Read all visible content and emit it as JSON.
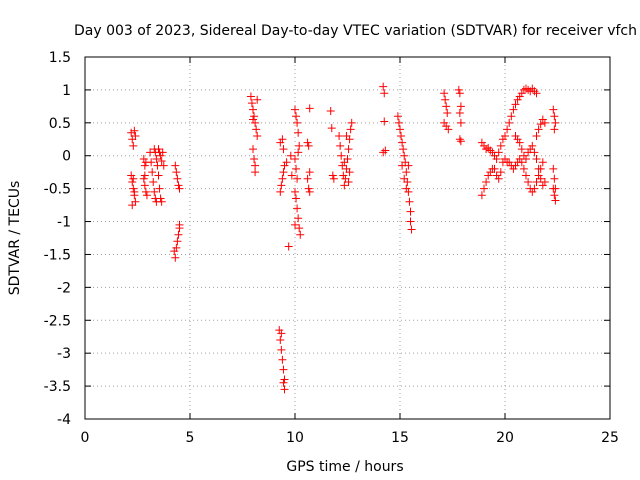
{
  "chart_data": {
    "type": "scatter",
    "title": "Day 003 of 2023, Sidereal Day-to-day VTEC variation (SDTVAR) for receiver vfch",
    "xlabel": "GPS time / hours",
    "ylabel": "SDTVAR / TECUs",
    "xlim": [
      0,
      25
    ],
    "ylim": [
      -4,
      1.5
    ],
    "xticks": [
      0,
      5,
      10,
      15,
      20,
      25
    ],
    "yticks": [
      -4,
      -3.5,
      -3,
      -2.5,
      -2,
      -1.5,
      -1,
      -0.5,
      0,
      0.5,
      1,
      1.5
    ],
    "grid": true,
    "marker": "+",
    "color": "#ff0000",
    "series": [
      {
        "name": "SDTVAR",
        "points": [
          [
            2.2,
            0.35
          ],
          [
            2.25,
            0.25
          ],
          [
            2.3,
            0.15
          ],
          [
            2.35,
            0.38
          ],
          [
            2.4,
            0.3
          ],
          [
            2.2,
            -0.3
          ],
          [
            2.25,
            -0.4
          ],
          [
            2.3,
            -0.5
          ],
          [
            2.35,
            -0.6
          ],
          [
            2.4,
            -0.7
          ],
          [
            2.25,
            -0.75
          ],
          [
            2.3,
            -0.35
          ],
          [
            2.35,
            -0.55
          ],
          [
            2.8,
            -0.05
          ],
          [
            2.85,
            -0.15
          ],
          [
            2.9,
            -0.1
          ],
          [
            2.8,
            -0.35
          ],
          [
            2.85,
            -0.45
          ],
          [
            2.9,
            -0.55
          ],
          [
            2.95,
            -0.6
          ],
          [
            2.85,
            -0.3
          ],
          [
            3.1,
            0.05
          ],
          [
            3.15,
            -0.1
          ],
          [
            3.2,
            -0.25
          ],
          [
            3.25,
            -0.4
          ],
          [
            3.3,
            -0.55
          ],
          [
            3.35,
            -0.65
          ],
          [
            3.4,
            -0.7
          ],
          [
            3.3,
            0.1
          ],
          [
            3.35,
            0.05
          ],
          [
            3.4,
            -0.05
          ],
          [
            3.45,
            -0.15
          ],
          [
            3.5,
            -0.3
          ],
          [
            3.55,
            -0.5
          ],
          [
            3.6,
            -0.65
          ],
          [
            3.65,
            -0.7
          ],
          [
            3.5,
            0.1
          ],
          [
            3.55,
            0.05
          ],
          [
            3.6,
            0.0
          ],
          [
            3.65,
            -0.08
          ],
          [
            3.7,
            0.05
          ],
          [
            3.75,
            -0.15
          ],
          [
            4.3,
            -0.15
          ],
          [
            4.35,
            -0.25
          ],
          [
            4.4,
            -0.35
          ],
          [
            4.45,
            -0.45
          ],
          [
            4.5,
            -0.5
          ],
          [
            4.25,
            -1.45
          ],
          [
            4.3,
            -1.55
          ],
          [
            4.35,
            -1.4
          ],
          [
            4.4,
            -1.3
          ],
          [
            4.45,
            -1.2
          ],
          [
            4.5,
            -1.1
          ],
          [
            4.5,
            -1.05
          ],
          [
            7.9,
            0.9
          ],
          [
            7.95,
            0.8
          ],
          [
            8.0,
            0.7
          ],
          [
            8.05,
            0.6
          ],
          [
            8.1,
            0.5
          ],
          [
            8.15,
            0.4
          ],
          [
            8.2,
            0.3
          ],
          [
            8.0,
            0.1
          ],
          [
            8.05,
            -0.05
          ],
          [
            8.1,
            -0.15
          ],
          [
            8.1,
            -0.25
          ],
          [
            8.2,
            0.85
          ],
          [
            8.0,
            0.55
          ],
          [
            9.25,
            -2.65
          ],
          [
            9.3,
            -2.8
          ],
          [
            9.35,
            -2.95
          ],
          [
            9.4,
            -3.1
          ],
          [
            9.45,
            -3.25
          ],
          [
            9.5,
            -3.4
          ],
          [
            9.5,
            -3.55
          ],
          [
            9.35,
            -2.7
          ],
          [
            9.45,
            -3.45
          ],
          [
            9.3,
            -0.55
          ],
          [
            9.35,
            -0.45
          ],
          [
            9.4,
            -0.35
          ],
          [
            9.45,
            -0.25
          ],
          [
            9.5,
            -0.15
          ],
          [
            9.3,
            0.2
          ],
          [
            9.4,
            0.25
          ],
          [
            9.45,
            0.1
          ],
          [
            9.6,
            -0.1
          ],
          [
            9.7,
            -1.38
          ],
          [
            9.8,
            0.0
          ],
          [
            9.85,
            -0.3
          ],
          [
            10.0,
            0.7
          ],
          [
            10.05,
            0.6
          ],
          [
            10.1,
            0.5
          ],
          [
            10.15,
            0.35
          ],
          [
            10.2,
            0.15
          ],
          [
            10.0,
            -0.05
          ],
          [
            10.05,
            -0.2
          ],
          [
            10.1,
            -0.35
          ],
          [
            10.0,
            -0.55
          ],
          [
            10.05,
            -0.65
          ],
          [
            10.1,
            -0.8
          ],
          [
            10.15,
            -0.95
          ],
          [
            10.2,
            -1.1
          ],
          [
            10.25,
            -1.2
          ],
          [
            10.0,
            -1.05
          ],
          [
            10.15,
            0.05
          ],
          [
            10.6,
            0.2
          ],
          [
            10.7,
            0.72
          ],
          [
            10.65,
            0.15
          ],
          [
            10.7,
            -0.25
          ],
          [
            10.6,
            -0.35
          ],
          [
            10.65,
            -0.5
          ],
          [
            10.7,
            -0.55
          ],
          [
            11.7,
            0.68
          ],
          [
            11.75,
            0.42
          ],
          [
            11.8,
            -0.3
          ],
          [
            11.85,
            -0.35
          ],
          [
            12.1,
            0.3
          ],
          [
            12.15,
            0.15
          ],
          [
            12.2,
            0.0
          ],
          [
            12.25,
            -0.15
          ],
          [
            12.3,
            -0.3
          ],
          [
            12.35,
            -0.45
          ],
          [
            12.4,
            -0.35
          ],
          [
            12.45,
            -0.2
          ],
          [
            12.5,
            -0.05
          ],
          [
            12.55,
            0.1
          ],
          [
            12.6,
            0.25
          ],
          [
            12.65,
            0.4
          ],
          [
            12.7,
            0.5
          ],
          [
            12.6,
            -0.25
          ],
          [
            12.55,
            -0.4
          ],
          [
            12.35,
            -0.1
          ],
          [
            12.45,
            0.3
          ],
          [
            14.2,
            1.05
          ],
          [
            14.25,
            0.95
          ],
          [
            14.25,
            0.52
          ],
          [
            14.2,
            0.05
          ],
          [
            14.3,
            0.08
          ],
          [
            14.9,
            0.6
          ],
          [
            14.95,
            0.5
          ],
          [
            15.0,
            0.4
          ],
          [
            15.05,
            0.3
          ],
          [
            15.1,
            0.2
          ],
          [
            15.15,
            0.1
          ],
          [
            15.2,
            0.0
          ],
          [
            15.25,
            -0.1
          ],
          [
            15.3,
            -0.25
          ],
          [
            15.35,
            -0.4
          ],
          [
            15.4,
            -0.55
          ],
          [
            15.45,
            -0.7
          ],
          [
            15.5,
            -0.85
          ],
          [
            15.5,
            -1.0
          ],
          [
            15.55,
            -1.12
          ],
          [
            15.3,
            -0.5
          ],
          [
            15.2,
            -0.35
          ],
          [
            15.1,
            -0.15
          ],
          [
            15.4,
            -0.15
          ],
          [
            17.1,
            0.95
          ],
          [
            17.15,
            0.85
          ],
          [
            17.2,
            0.75
          ],
          [
            17.25,
            0.65
          ],
          [
            17.1,
            0.5
          ],
          [
            17.2,
            0.45
          ],
          [
            17.3,
            0.4
          ],
          [
            17.8,
            1.0
          ],
          [
            17.85,
            0.95
          ],
          [
            17.9,
            0.75
          ],
          [
            17.85,
            0.65
          ],
          [
            17.9,
            0.5
          ],
          [
            17.85,
            0.25
          ],
          [
            17.9,
            0.22
          ],
          [
            18.9,
            -0.6
          ],
          [
            19.0,
            -0.5
          ],
          [
            19.1,
            -0.4
          ],
          [
            19.2,
            -0.3
          ],
          [
            19.3,
            -0.25
          ],
          [
            19.4,
            -0.2
          ],
          [
            19.5,
            -0.2
          ],
          [
            19.6,
            -0.3
          ],
          [
            19.7,
            -0.35
          ],
          [
            19.8,
            -0.25
          ],
          [
            19.9,
            -0.1
          ],
          [
            18.9,
            0.2
          ],
          [
            19.0,
            0.15
          ],
          [
            19.1,
            0.1
          ],
          [
            19.2,
            0.12
          ],
          [
            19.3,
            0.08
          ],
          [
            19.4,
            0.05
          ],
          [
            19.5,
            0.0
          ],
          [
            19.6,
            -0.05
          ],
          [
            19.7,
            0.05
          ],
          [
            19.8,
            0.15
          ],
          [
            19.9,
            0.25
          ],
          [
            20.0,
            0.3
          ],
          [
            20.1,
            0.4
          ],
          [
            20.2,
            0.5
          ],
          [
            20.3,
            0.6
          ],
          [
            20.4,
            0.7
          ],
          [
            20.5,
            0.78
          ],
          [
            20.6,
            0.85
          ],
          [
            20.7,
            0.9
          ],
          [
            20.8,
            0.95
          ],
          [
            20.9,
            1.0
          ],
          [
            21.0,
            1.02
          ],
          [
            21.1,
            1.0
          ],
          [
            21.2,
            0.98
          ],
          [
            21.3,
            1.02
          ],
          [
            21.4,
            0.98
          ],
          [
            21.5,
            0.95
          ],
          [
            20.0,
            -0.05
          ],
          [
            20.1,
            -0.1
          ],
          [
            20.2,
            -0.1
          ],
          [
            20.3,
            -0.15
          ],
          [
            20.4,
            -0.2
          ],
          [
            20.5,
            -0.15
          ],
          [
            20.6,
            -0.1
          ],
          [
            20.7,
            -0.05
          ],
          [
            20.8,
            -0.1
          ],
          [
            20.9,
            -0.2
          ],
          [
            21.0,
            -0.3
          ],
          [
            21.1,
            -0.4
          ],
          [
            21.2,
            -0.5
          ],
          [
            21.3,
            -0.55
          ],
          [
            21.4,
            -0.5
          ],
          [
            21.5,
            -0.4
          ],
          [
            21.6,
            -0.3
          ],
          [
            21.7,
            -0.2
          ],
          [
            21.8,
            -0.1
          ],
          [
            20.5,
            0.3
          ],
          [
            20.6,
            0.25
          ],
          [
            20.7,
            0.2
          ],
          [
            20.8,
            0.1
          ],
          [
            20.9,
            0.0
          ],
          [
            21.0,
            -0.05
          ],
          [
            21.1,
            0.05
          ],
          [
            21.2,
            0.1
          ],
          [
            21.3,
            0.15
          ],
          [
            21.4,
            0.05
          ],
          [
            21.5,
            -0.05
          ],
          [
            21.6,
            -0.2
          ],
          [
            21.7,
            -0.35
          ],
          [
            21.8,
            -0.45
          ],
          [
            21.9,
            -0.4
          ],
          [
            21.5,
            0.3
          ],
          [
            21.6,
            0.4
          ],
          [
            21.7,
            0.48
          ],
          [
            21.8,
            0.55
          ],
          [
            21.9,
            0.5
          ],
          [
            22.3,
            0.7
          ],
          [
            22.35,
            0.6
          ],
          [
            22.4,
            0.5
          ],
          [
            22.35,
            0.4
          ],
          [
            22.3,
            -0.2
          ],
          [
            22.35,
            -0.35
          ],
          [
            22.4,
            -0.5
          ],
          [
            22.35,
            -0.6
          ],
          [
            22.4,
            -0.68
          ],
          [
            22.3,
            -0.5
          ]
        ]
      }
    ]
  }
}
